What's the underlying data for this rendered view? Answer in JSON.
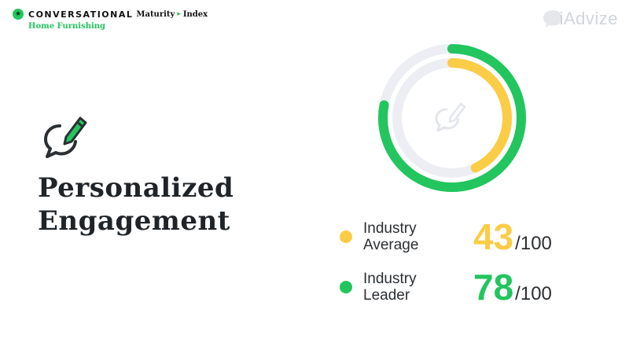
{
  "brand": {
    "badge": "★",
    "name": "CONVERSATIONAL",
    "maturity": "Maturity",
    "separator": "▸",
    "index": "Index",
    "subtitle": "Home Furnishing"
  },
  "logo": {
    "text": "iAdvize"
  },
  "title": {
    "line1": "Personalized",
    "line2": "Engagement"
  },
  "feature_icon": "chat-edit-icon",
  "colors": {
    "average": "#fbcc45",
    "leader": "#22c55e",
    "track": "#eceef3",
    "text": "#1f2428"
  },
  "chart_data": {
    "type": "pie",
    "max": 100,
    "series": [
      {
        "name": "Industry Average",
        "value": 43
      },
      {
        "name": "Industry Leader",
        "value": 78
      }
    ]
  },
  "legend": [
    {
      "label_line1": "Industry",
      "label_line2": "Average",
      "value": "43",
      "max": "/100"
    },
    {
      "label_line1": "Industry",
      "label_line2": "Leader",
      "value": "78",
      "max": "/100"
    }
  ]
}
